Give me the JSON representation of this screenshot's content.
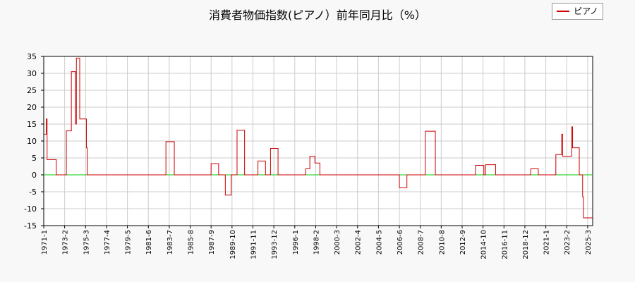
{
  "chart_data": {
    "type": "line",
    "title": "消費者物価指数(ピアノ）前年同月比（%）",
    "legend_position": "top-right",
    "grid": true,
    "xlabel": "",
    "ylabel": "",
    "ylim": [
      -15,
      35
    ],
    "y_ticks": [
      35,
      30,
      25,
      20,
      15,
      10,
      5,
      0,
      -5,
      -10,
      -15
    ],
    "x_range": [
      "1971-1",
      "2025-9"
    ],
    "x_ticks": [
      "1971-1",
      "1973-2",
      "1975-3",
      "1977-4",
      "1979-5",
      "1981-6",
      "1983-7",
      "1985-8",
      "1987-9",
      "1989-10",
      "1991-11",
      "1993-12",
      "1996-1",
      "1998-2",
      "2000-3",
      "2002-4",
      "2004-5",
      "2006-6",
      "2008-7",
      "2010-8",
      "2012-9",
      "2014-10",
      "2016-11",
      "2018-12",
      "2021-1",
      "2023-2",
      "2025-3"
    ],
    "series": [
      {
        "name": "ピアノ",
        "color": "#cc0000",
        "step": true,
        "points": [
          [
            "1971-1",
            12
          ],
          [
            "1971-4",
            16.5
          ],
          [
            "1971-5",
            4.5
          ],
          [
            "1972-4",
            0
          ],
          [
            "1973-4",
            13
          ],
          [
            "1973-10",
            30.5
          ],
          [
            "1974-3",
            15
          ],
          [
            "1974-4",
            34.5
          ],
          [
            "1974-8",
            16.5
          ],
          [
            "1975-4",
            8
          ],
          [
            "1975-5",
            0
          ],
          [
            "1983-3",
            9.8
          ],
          [
            "1984-1",
            0
          ],
          [
            "1987-9",
            3.3
          ],
          [
            "1988-6",
            0
          ],
          [
            "1989-2",
            -6
          ],
          [
            "1989-9",
            0
          ],
          [
            "1990-4",
            13.2
          ],
          [
            "1991-1",
            0
          ],
          [
            "1992-5",
            4.1
          ],
          [
            "1993-2",
            0
          ],
          [
            "1993-8",
            7.8
          ],
          [
            "1994-5",
            0
          ],
          [
            "1997-2",
            1.8
          ],
          [
            "1997-7",
            5.5
          ],
          [
            "1998-1",
            3.5
          ],
          [
            "1998-7",
            0
          ],
          [
            "2006-6",
            -3.8
          ],
          [
            "2007-3",
            0
          ],
          [
            "2009-1",
            12.9
          ],
          [
            "2010-1",
            0
          ],
          [
            "2014-1",
            2.8
          ],
          [
            "2014-11",
            0
          ],
          [
            "2015-1",
            3
          ],
          [
            "2016-1",
            0
          ],
          [
            "2019-7",
            1.8
          ],
          [
            "2020-4",
            0
          ],
          [
            "2022-1",
            6
          ],
          [
            "2022-8",
            12
          ],
          [
            "2022-9",
            5.5
          ],
          [
            "2023-8",
            14.2
          ],
          [
            "2023-9",
            8
          ],
          [
            "2024-5",
            0
          ],
          [
            "2024-9",
            -6.5
          ],
          [
            "2024-10",
            -12.7
          ],
          [
            "2025-9",
            -12.7
          ]
        ]
      }
    ],
    "reference_line": {
      "y": 0,
      "color": "#00cc00"
    }
  }
}
